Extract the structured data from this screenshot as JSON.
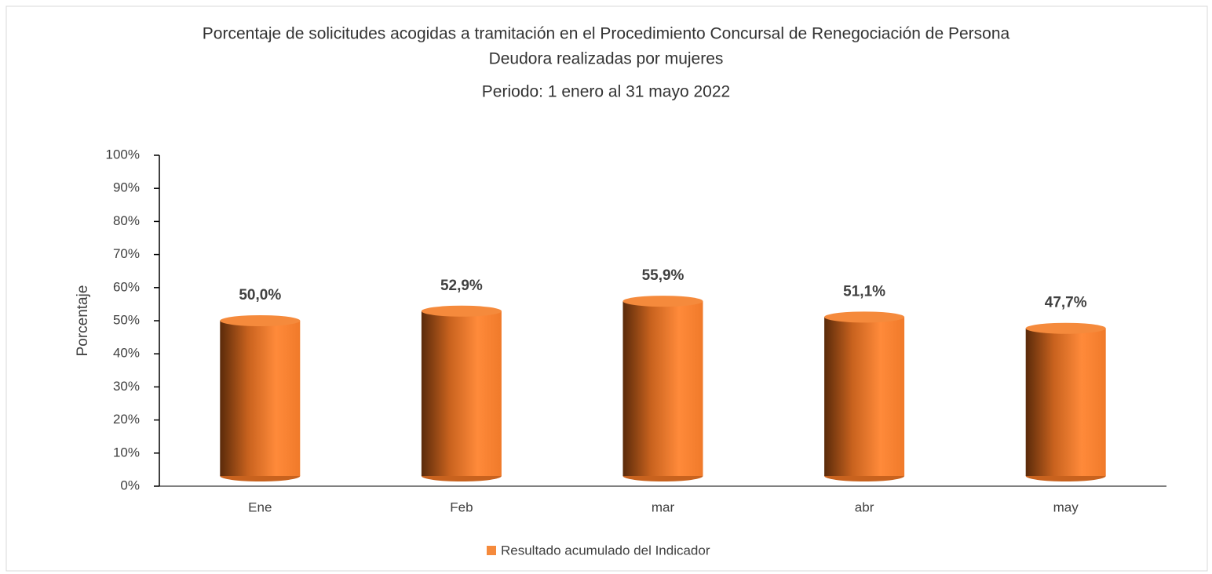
{
  "chart_data": {
    "type": "cylinder",
    "title": [
      "Porcentaje de solicitudes acogidas a tramitación en el Procedimiento Concursal de Renegociación de Persona",
      "Deudora realizadas por mujeres"
    ],
    "subtitle": "Periodo: 1 enero al 31 mayo 2022",
    "y_label": "Porcentaje",
    "categories": [
      "Ene",
      "Feb",
      "mar",
      "abr",
      "may"
    ],
    "series": [
      {
        "name": "Resultado acumulado del Indicador",
        "color": "#f58a3c",
        "values": [
          50.0,
          52.9,
          55.9,
          51.1,
          47.7
        ],
        "value_labels": [
          "50,0%",
          "52,9%",
          "55,9%",
          "51,1%",
          "47,7%"
        ]
      }
    ],
    "ylim": [
      0,
      100
    ],
    "yticks": [
      {
        "value": 0,
        "label": "0%"
      },
      {
        "value": 10,
        "label": "10%"
      },
      {
        "value": 20,
        "label": "20%"
      },
      {
        "value": 30,
        "label": "30%"
      },
      {
        "value": 40,
        "label": "40%"
      },
      {
        "value": 50,
        "label": "50%"
      },
      {
        "value": 60,
        "label": "60%"
      },
      {
        "value": 70,
        "label": "70%"
      },
      {
        "value": 80,
        "label": "80%"
      },
      {
        "value": 90,
        "label": "90%"
      },
      {
        "value": 100,
        "label": "100%"
      }
    ],
    "grid": false,
    "legend": "bottom"
  }
}
